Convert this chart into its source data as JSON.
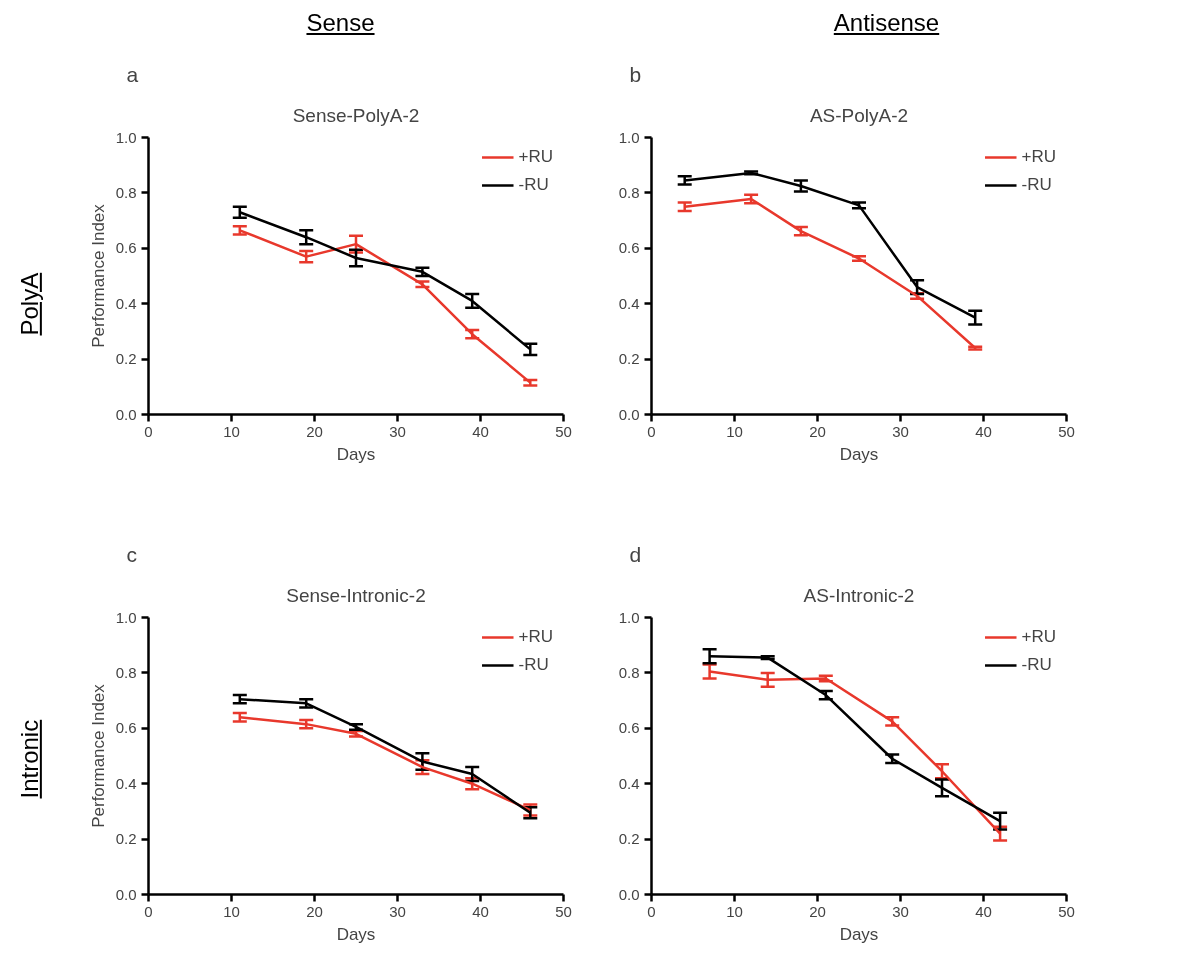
{
  "chart_data": [
    {
      "type": "line",
      "title": "Sense-PolyA-2",
      "xlabel": "Days",
      "ylabel": "Performance Index",
      "annotations": [
        "a",
        "Sense",
        "PolyA"
      ],
      "xlim": [
        0,
        50
      ],
      "xticks": [
        0,
        10,
        20,
        30,
        40,
        50
      ],
      "ylim": [
        0,
        1
      ],
      "yticks": [
        {
          "value": 0,
          "label": "0.0"
        },
        {
          "value": 0.2,
          "label": "0.2"
        },
        {
          "value": 0.4,
          "label": "0.4"
        },
        {
          "value": 0.6,
          "label": "0.6"
        },
        {
          "value": 0.8,
          "label": "0.8"
        },
        {
          "value": 1,
          "label": "1.0"
        }
      ],
      "grid": false,
      "legend": "top right",
      "x": [
        11,
        19,
        25,
        33,
        39,
        46
      ],
      "series": [
        {
          "name": "+RU",
          "color": "#e8382c",
          "values": [
            0.665,
            0.57,
            0.615,
            0.47,
            0.29,
            0.115
          ],
          "errors": [
            0.015,
            0.02,
            0.03,
            0.01,
            0.015,
            0.01
          ]
        },
        {
          "name": "-RU",
          "color": "#000000",
          "values": [
            0.73,
            0.64,
            0.565,
            0.515,
            0.41,
            0.235
          ],
          "errors": [
            0.02,
            0.025,
            0.03,
            0.015,
            0.025,
            0.02
          ]
        }
      ]
    },
    {
      "type": "line",
      "title": "AS-PolyA-2",
      "xlabel": "Days",
      "annotations": [
        "b",
        "Antisense"
      ],
      "xlim": [
        0,
        50
      ],
      "xticks": [
        0,
        10,
        20,
        30,
        40,
        50
      ],
      "ylim": [
        0,
        1
      ],
      "yticks": [
        {
          "value": 0,
          "label": "0.0"
        },
        {
          "value": 0.2,
          "label": "0.2"
        },
        {
          "value": 0.4,
          "label": "0.4"
        },
        {
          "value": 0.6,
          "label": "0.6"
        },
        {
          "value": 0.8,
          "label": "0.8"
        },
        {
          "value": 1,
          "label": "1.0"
        }
      ],
      "grid": false,
      "legend": "top right",
      "x": [
        4,
        12,
        18,
        25,
        32,
        39
      ],
      "series": [
        {
          "name": "+RU",
          "color": "#e8382c",
          "values": [
            0.75,
            0.778,
            0.662,
            0.563,
            0.428,
            0.24
          ],
          "errors": [
            0.015,
            0.015,
            0.015,
            0.008,
            0.01,
            0.005
          ]
        },
        {
          "name": "-RU",
          "color": "#000000",
          "values": [
            0.845,
            0.872,
            0.825,
            0.755,
            0.46,
            0.35
          ],
          "errors": [
            0.015,
            0.005,
            0.02,
            0.01,
            0.025,
            0.025
          ]
        }
      ]
    },
    {
      "type": "line",
      "title": "Sense-Intronic-2",
      "xlabel": "Days",
      "ylabel": "Performance Index",
      "annotations": [
        "c",
        "Intronic"
      ],
      "xlim": [
        0,
        50
      ],
      "xticks": [
        0,
        10,
        20,
        30,
        40,
        50
      ],
      "ylim": [
        0,
        1
      ],
      "yticks": [
        {
          "value": 0,
          "label": "0.0"
        },
        {
          "value": 0.2,
          "label": "0.2"
        },
        {
          "value": 0.4,
          "label": "0.4"
        },
        {
          "value": 0.6,
          "label": "0.6"
        },
        {
          "value": 0.8,
          "label": "0.8"
        },
        {
          "value": 1,
          "label": "1.0"
        }
      ],
      "grid": false,
      "legend": "top right",
      "x": [
        11,
        19,
        25,
        33,
        39,
        46
      ],
      "series": [
        {
          "name": "+RU",
          "color": "#e8382c",
          "values": [
            0.64,
            0.615,
            0.58,
            0.46,
            0.4,
            0.305
          ],
          "errors": [
            0.015,
            0.015,
            0.01,
            0.025,
            0.02,
            0.02
          ]
        },
        {
          "name": "-RU",
          "color": "#000000",
          "values": [
            0.705,
            0.69,
            0.605,
            0.48,
            0.435,
            0.295
          ],
          "errors": [
            0.015,
            0.015,
            0.01,
            0.03,
            0.025,
            0.02
          ]
        }
      ]
    },
    {
      "type": "line",
      "title": "AS-Intronic-2",
      "xlabel": "Days",
      "annotations": [
        "d"
      ],
      "xlim": [
        0,
        50
      ],
      "xticks": [
        0,
        10,
        20,
        30,
        40,
        50
      ],
      "ylim": [
        0,
        1
      ],
      "yticks": [
        {
          "value": 0,
          "label": "0.0"
        },
        {
          "value": 0.2,
          "label": "0.2"
        },
        {
          "value": 0.4,
          "label": "0.4"
        },
        {
          "value": 0.6,
          "label": "0.6"
        },
        {
          "value": 0.8,
          "label": "0.8"
        },
        {
          "value": 1,
          "label": "1.0"
        }
      ],
      "grid": false,
      "legend": "top right",
      "x": [
        7,
        14,
        21,
        29,
        35,
        42
      ],
      "series": [
        {
          "name": "+RU",
          "color": "#e8382c",
          "values": [
            0.805,
            0.775,
            0.78,
            0.625,
            0.445,
            0.22
          ],
          "errors": [
            0.025,
            0.025,
            0.01,
            0.015,
            0.025,
            0.025
          ]
        },
        {
          "name": "-RU",
          "color": "#000000",
          "values": [
            0.86,
            0.855,
            0.72,
            0.49,
            0.385,
            0.265
          ],
          "errors": [
            0.025,
            0.005,
            0.015,
            0.015,
            0.03,
            0.03
          ]
        }
      ]
    }
  ]
}
